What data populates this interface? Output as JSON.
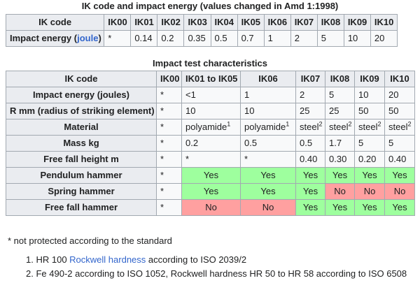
{
  "table1": {
    "caption": "IK code and impact energy (values changed in Amd 1:1998)",
    "header": {
      "label": "IK code",
      "codes": [
        "IK00",
        "IK01",
        "IK02",
        "IK03",
        "IK04",
        "IK05",
        "IK06",
        "IK07",
        "IK08",
        "IK09",
        "IK10"
      ]
    },
    "energy_row": {
      "label_prefix": "Impact energy (",
      "label_link": "joule",
      "label_suffix": ")",
      "values": [
        "*",
        "0.14",
        "0.2",
        "0.35",
        "0.5",
        "0.7",
        "1",
        "2",
        "5",
        "10",
        "20"
      ]
    }
  },
  "table2": {
    "caption": "Impact test characteristics",
    "header": [
      "IK code",
      "IK00",
      "IK01 to IK05",
      "IK06",
      "IK07",
      "IK08",
      "IK09",
      "IK10"
    ],
    "rows": [
      {
        "label": "Impact energy (joules)",
        "cells": [
          {
            "v": "*"
          },
          {
            "v": "<1"
          },
          {
            "v": "1"
          },
          {
            "v": "2"
          },
          {
            "v": "5"
          },
          {
            "v": "10"
          },
          {
            "v": "20"
          }
        ]
      },
      {
        "label": "R mm (radius of striking element)",
        "cells": [
          {
            "v": "*"
          },
          {
            "v": "10"
          },
          {
            "v": "10"
          },
          {
            "v": "25"
          },
          {
            "v": "25"
          },
          {
            "v": "50"
          },
          {
            "v": "50"
          }
        ]
      },
      {
        "label": "Material",
        "cells": [
          {
            "v": "*"
          },
          {
            "v": "polyamide",
            "sup": "1"
          },
          {
            "v": "polyamide",
            "sup": "1"
          },
          {
            "v": "steel",
            "sup": "2"
          },
          {
            "v": "steel",
            "sup": "2"
          },
          {
            "v": "steel",
            "sup": "2"
          },
          {
            "v": "steel",
            "sup": "2"
          }
        ]
      },
      {
        "label": "Mass kg",
        "cells": [
          {
            "v": "*"
          },
          {
            "v": "0.2"
          },
          {
            "v": "0.5"
          },
          {
            "v": "0.5"
          },
          {
            "v": "1.7"
          },
          {
            "v": "5"
          },
          {
            "v": "5"
          }
        ]
      },
      {
        "label": "Free fall height m",
        "cells": [
          {
            "v": "*"
          },
          {
            "v": "*"
          },
          {
            "v": "*"
          },
          {
            "v": "0.40"
          },
          {
            "v": "0.30"
          },
          {
            "v": "0.20"
          },
          {
            "v": "0.40"
          }
        ]
      },
      {
        "label": "Pendulum hammer",
        "cells": [
          {
            "v": "*"
          },
          {
            "v": "Yes",
            "s": "yes"
          },
          {
            "v": "Yes",
            "s": "yes"
          },
          {
            "v": "Yes",
            "s": "yes"
          },
          {
            "v": "Yes",
            "s": "yes"
          },
          {
            "v": "Yes",
            "s": "yes"
          },
          {
            "v": "Yes",
            "s": "yes"
          }
        ]
      },
      {
        "label": "Spring hammer",
        "cells": [
          {
            "v": "*"
          },
          {
            "v": "Yes",
            "s": "yes"
          },
          {
            "v": "Yes",
            "s": "yes"
          },
          {
            "v": "Yes",
            "s": "yes"
          },
          {
            "v": "No",
            "s": "no"
          },
          {
            "v": "No",
            "s": "no"
          },
          {
            "v": "No",
            "s": "no"
          }
        ]
      },
      {
        "label": "Free fall hammer",
        "cells": [
          {
            "v": "*"
          },
          {
            "v": "No",
            "s": "no"
          },
          {
            "v": "No",
            "s": "no"
          },
          {
            "v": "Yes",
            "s": "yes"
          },
          {
            "v": "Yes",
            "s": "yes"
          },
          {
            "v": "Yes",
            "s": "yes"
          },
          {
            "v": "Yes",
            "s": "yes"
          }
        ]
      }
    ]
  },
  "footnotes": {
    "asterisk_note": "* not protected according to the standard",
    "items": [
      {
        "num": "1.",
        "pre": "HR 100 ",
        "link": "Rockwell hardness",
        "post": " according to ISO 2039/2"
      },
      {
        "num": "2.",
        "pre": "Fe 490-2 according to ISO 1052, Rockwell hardness HR 50 to HR 58 according to ISO 6508",
        "link": "",
        "post": ""
      }
    ]
  },
  "colors": {
    "yes": "#9eff9e",
    "no": "#ffa0a0",
    "header": "#eaecf0",
    "cell": "#f8f9fa",
    "link": "#3366cc"
  }
}
